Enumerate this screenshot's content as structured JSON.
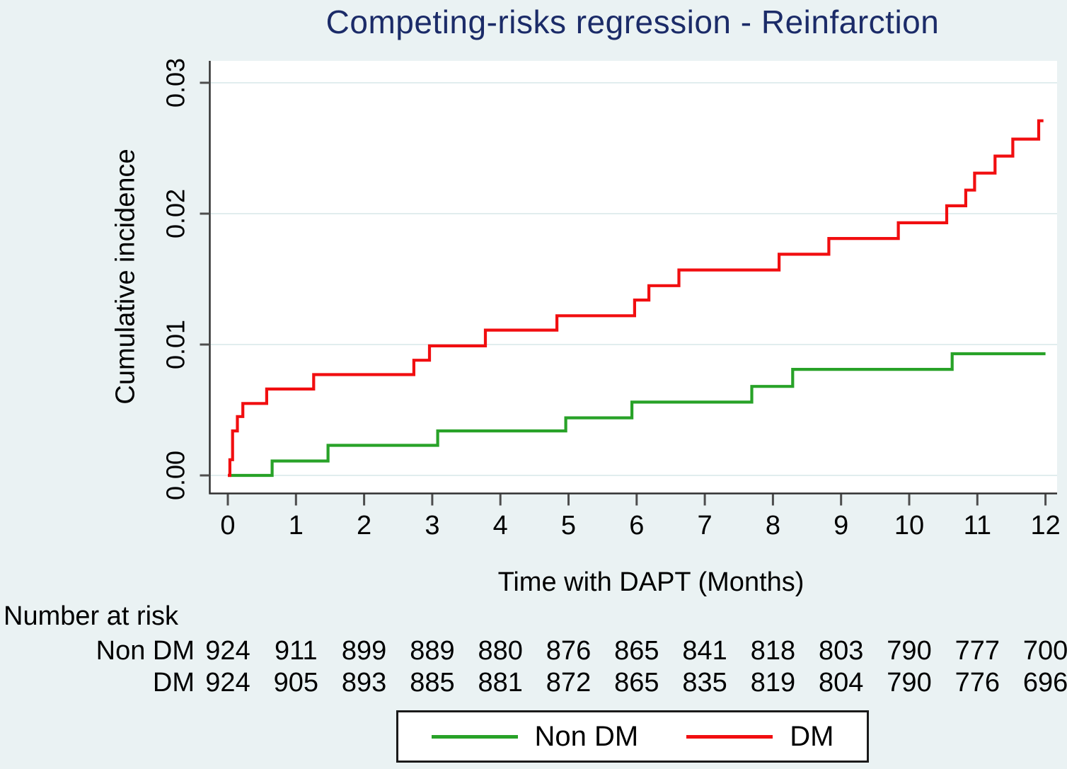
{
  "page": {
    "background": "#eaf2f3",
    "plot_background": "#ffffff",
    "grid_color": "#e1edee",
    "axis_color": "#303030",
    "title_color": "#1b2b68"
  },
  "chart_data": {
    "type": "line",
    "subtype": "step-function-cumulative-incidence",
    "title": "Competing-risks regression - Reinfarction",
    "xlabel": "Time with DAPT (Months)",
    "ylabel": "Cumulative incidence",
    "x_axis": {
      "ticks": [
        0,
        1,
        2,
        3,
        4,
        5,
        6,
        7,
        8,
        9,
        10,
        11,
        12
      ],
      "range": [
        0,
        12.2
      ]
    },
    "y_axis": {
      "tick_labels": [
        "0.00",
        "0.01",
        "0.02",
        "0.03"
      ],
      "tick_values": [
        0,
        0.01,
        0.02,
        0.03
      ],
      "range": [
        0,
        0.0322
      ]
    },
    "grid": "horizontal",
    "legend_position": "bottom",
    "series": [
      {
        "name": "Non DM",
        "color": "#28a228",
        "steps": [
          [
            0,
            0
          ],
          [
            0.65,
            0.0011
          ],
          [
            1.47,
            0.0023
          ],
          [
            3.08,
            0.0034
          ],
          [
            4.96,
            0.0044
          ],
          [
            5.93,
            0.0056
          ],
          [
            7.69,
            0.0068
          ],
          [
            8.29,
            0.0081
          ],
          [
            10.63,
            0.0093
          ],
          [
            12.0,
            0.0093
          ]
        ]
      },
      {
        "name": "DM",
        "color": "#f10e10",
        "steps": [
          [
            0,
            0
          ],
          [
            0.03,
            0.0012
          ],
          [
            0.07,
            0.0034
          ],
          [
            0.14,
            0.0045
          ],
          [
            0.22,
            0.0055
          ],
          [
            0.57,
            0.0066
          ],
          [
            1.26,
            0.0077
          ],
          [
            2.73,
            0.0088
          ],
          [
            2.96,
            0.0099
          ],
          [
            3.78,
            0.0111
          ],
          [
            4.83,
            0.0122
          ],
          [
            5.97,
            0.0134
          ],
          [
            6.18,
            0.0145
          ],
          [
            6.62,
            0.0157
          ],
          [
            8.09,
            0.0169
          ],
          [
            8.82,
            0.0181
          ],
          [
            9.84,
            0.0193
          ],
          [
            10.55,
            0.0206
          ],
          [
            10.83,
            0.0218
          ],
          [
            10.96,
            0.0231
          ],
          [
            11.26,
            0.0244
          ],
          [
            11.52,
            0.0257
          ],
          [
            11.9,
            0.0271
          ],
          [
            11.97,
            0.0271
          ]
        ]
      }
    ],
    "legend": {
      "entries": [
        {
          "label": "Non DM",
          "color": "#28a228"
        },
        {
          "label": "DM",
          "color": "#f10e10"
        }
      ]
    },
    "risk_table": {
      "title": "Number at risk",
      "time_points": [
        0,
        1,
        2,
        3,
        4,
        5,
        6,
        7,
        8,
        9,
        10,
        11,
        12
      ],
      "rows": [
        {
          "label": "Non DM",
          "values": [
            924,
            911,
            899,
            889,
            880,
            876,
            865,
            841,
            818,
            803,
            790,
            777,
            700
          ]
        },
        {
          "label": "DM",
          "values": [
            924,
            905,
            893,
            885,
            881,
            872,
            865,
            835,
            819,
            804,
            790,
            776,
            696
          ]
        }
      ]
    }
  }
}
